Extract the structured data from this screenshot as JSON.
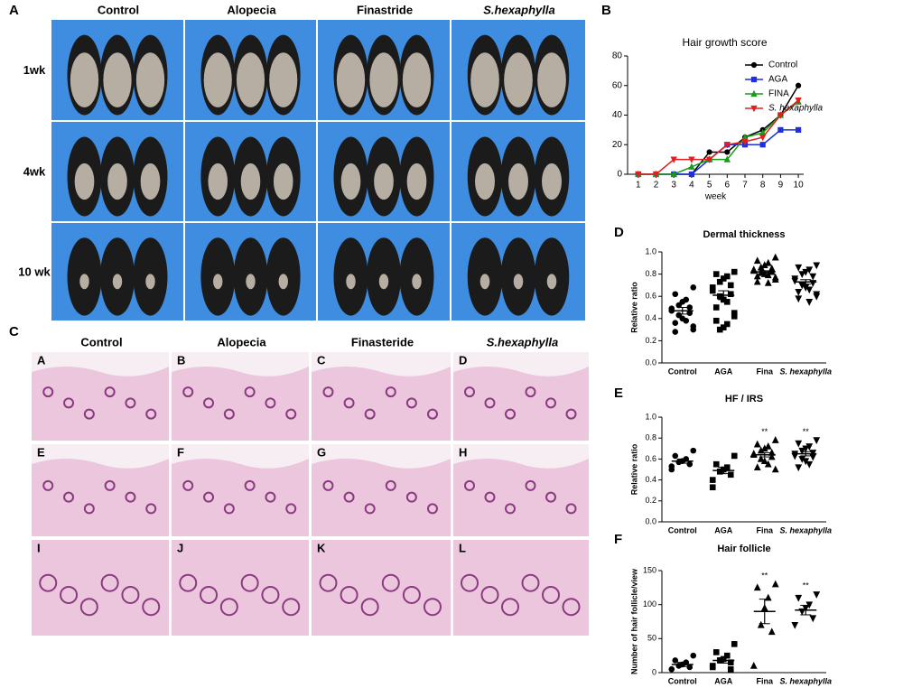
{
  "figure": {
    "panel_a": {
      "label": "A",
      "columns": [
        "Control",
        "Alopecia",
        "Finastride",
        "S.hexaphylla"
      ],
      "rows": [
        "1wk",
        "4wk",
        "10 wk"
      ]
    },
    "panel_c": {
      "label": "C",
      "columns": [
        "Control",
        "Alopecia",
        "Finasteride",
        "S.hexaphylla"
      ],
      "tiles": [
        "A",
        "B",
        "C",
        "D",
        "E",
        "F",
        "G",
        "H",
        "I",
        "J",
        "K",
        "L"
      ]
    }
  },
  "chart_data": [
    {
      "type": "line",
      "label": "B",
      "title": "Hair growth score",
      "xlabel": "week",
      "x": [
        1,
        2,
        3,
        4,
        5,
        6,
        7,
        8,
        9,
        10
      ],
      "xlim": [
        0.4,
        10.3
      ],
      "xticks": [
        1,
        2,
        3,
        4,
        5,
        6,
        7,
        8,
        9,
        10
      ],
      "ylim": [
        0,
        80
      ],
      "yticks": [
        0,
        20,
        40,
        60,
        80
      ],
      "legend": "upper right",
      "series": [
        {
          "name": "Control",
          "color": "#000000",
          "marker": "circle",
          "values": [
            0,
            0,
            0,
            0,
            15,
            15,
            25,
            30,
            40,
            60
          ]
        },
        {
          "name": "AGA",
          "color": "#1f2fe0",
          "marker": "square",
          "values": [
            0,
            0,
            0,
            0,
            10,
            20,
            20,
            20,
            30,
            30
          ]
        },
        {
          "name": "FINA",
          "color": "#1a9a1a",
          "marker": "triangle-up",
          "values": [
            0,
            0,
            0,
            5,
            10,
            10,
            25,
            28,
            40,
            49
          ]
        },
        {
          "name": "S. hexaphylla",
          "color": "#e02020",
          "marker": "triangle-down",
          "values": [
            0,
            0,
            10,
            10,
            10,
            20,
            22,
            25,
            40,
            50
          ]
        }
      ]
    },
    {
      "type": "dot",
      "label": "D",
      "title": "Dermal thickness",
      "ylabel": "Relative ratio",
      "categories": [
        "Control",
        "AGA",
        "Fina",
        "S. hexaphylla"
      ],
      "markers": [
        "circle",
        "square",
        "triangle-up",
        "triangle-down"
      ],
      "ylim": [
        0,
        1
      ],
      "yticks": [
        {
          "value": 0,
          "label": "0.0"
        },
        0.2,
        0.4,
        0.6,
        0.8,
        {
          "value": 1,
          "label": "1.0"
        }
      ],
      "points": [
        [
          0.68,
          0.62,
          0.57,
          0.55,
          0.52,
          0.5,
          0.49,
          0.47,
          0.45,
          0.43,
          0.4,
          0.38,
          0.36,
          0.33,
          0.3,
          0.28
        ],
        [
          0.82,
          0.8,
          0.78,
          0.76,
          0.73,
          0.7,
          0.68,
          0.65,
          0.62,
          0.6,
          0.57,
          0.55,
          0.5,
          0.45,
          0.42,
          0.38,
          0.35,
          0.32,
          0.3
        ],
        [
          0.95,
          0.92,
          0.9,
          0.88,
          0.86,
          0.85,
          0.84,
          0.83,
          0.82,
          0.81,
          0.8,
          0.79,
          0.78,
          0.77,
          0.75,
          0.73,
          0.72
        ],
        [
          0.88,
          0.86,
          0.84,
          0.82,
          0.8,
          0.78,
          0.76,
          0.74,
          0.72,
          0.7,
          0.68,
          0.66,
          0.64,
          0.62,
          0.6,
          0.58,
          0.55
        ]
      ],
      "values": [
        0.47,
        0.61,
        0.82,
        0.73
      ],
      "errors": [
        0.03,
        0.04,
        0.01,
        0.02
      ]
    },
    {
      "type": "dot",
      "label": "E",
      "title": "HF / IRS",
      "ylabel": "Relative ratio",
      "categories": [
        "Control",
        "AGA",
        "Fina",
        "S. hexaphylla"
      ],
      "markers": [
        "circle",
        "square",
        "triangle-up",
        "triangle-down"
      ],
      "ylim": [
        0,
        1
      ],
      "yticks": [
        {
          "value": 0,
          "label": "0.0"
        },
        0.2,
        0.4,
        0.6,
        0.8,
        {
          "value": 1,
          "label": "1.0"
        }
      ],
      "points": [
        [
          0.68,
          0.63,
          0.6,
          0.58,
          0.57,
          0.55,
          0.53,
          0.5
        ],
        [
          0.63,
          0.55,
          0.52,
          0.5,
          0.48,
          0.45,
          0.4,
          0.33
        ],
        [
          0.78,
          0.74,
          0.72,
          0.7,
          0.68,
          0.66,
          0.65,
          0.64,
          0.62,
          0.6,
          0.58,
          0.55,
          0.52,
          0.5
        ],
        [
          0.78,
          0.75,
          0.72,
          0.7,
          0.68,
          0.66,
          0.65,
          0.63,
          0.62,
          0.6,
          0.58,
          0.55,
          0.52
        ]
      ],
      "values": [
        0.58,
        0.49,
        0.64,
        0.65
      ],
      "errors": [
        0.02,
        0.03,
        0.02,
        0.02
      ],
      "annotations": [
        {
          "x": "Fina",
          "text": "**"
        },
        {
          "x": "S. hexaphylla",
          "text": "**"
        }
      ]
    },
    {
      "type": "dot",
      "label": "F",
      "title": "Hair follicle",
      "ylabel": "Number of hair follicle/view",
      "categories": [
        "Control",
        "AGA",
        "Fina",
        "S. hexaphylla"
      ],
      "markers": [
        "circle",
        "square",
        "triangle-up",
        "triangle-down"
      ],
      "ylim": [
        0,
        150
      ],
      "yticks": [
        0,
        50,
        100,
        150
      ],
      "points": [
        [
          25,
          18,
          15,
          12,
          10,
          8,
          5
        ],
        [
          42,
          30,
          25,
          20,
          18,
          15,
          10,
          8,
          5
        ],
        [
          130,
          125,
          110,
          95,
          70,
          60,
          10
        ],
        [
          115,
          110,
          100,
          95,
          90,
          80,
          70
        ]
      ],
      "values": [
        12,
        18,
        90,
        92
      ],
      "errors": [
        3,
        4,
        18,
        7
      ],
      "annotations": [
        {
          "x": "Fina",
          "text": "**"
        },
        {
          "x": "S. hexaphylla",
          "text": "**"
        }
      ]
    }
  ]
}
